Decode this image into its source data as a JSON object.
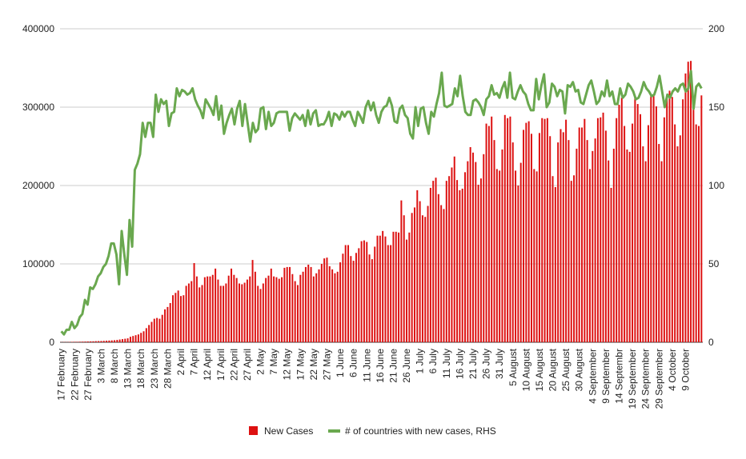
{
  "chart_data": {
    "type": "bar",
    "title": "",
    "x_ticks": [
      "17 February",
      "22 February",
      "27 February",
      "3 March",
      "8 March",
      "13 March",
      "18 March",
      "23 March",
      "28 March",
      "2 April",
      "7 April",
      "12 April",
      "17 April",
      "22 April",
      "27 April",
      "2 May",
      "7 May",
      "12 May",
      "17 May",
      "22 May",
      "27 May",
      "1 June",
      "6 June",
      "11 June",
      "16 June",
      "21 June",
      "26 June",
      "1 July",
      "6 July",
      "11 July",
      "16 July",
      "21 July",
      "26 July",
      "31 July",
      "5 August",
      "10 August",
      "15 August",
      "20 August",
      "25 August",
      "30 August",
      "4 September",
      "9 September",
      "14 Septembr",
      "19 September",
      "24 September",
      "29 September",
      "4 October",
      "9 October"
    ],
    "y_left_ticks": [
      "0",
      "100000",
      "200000",
      "300000",
      "400000"
    ],
    "y_right_ticks": [
      "0",
      "50",
      "100",
      "150",
      "200"
    ],
    "ylim_left": [
      0,
      400000
    ],
    "ylim_right": [
      0,
      200
    ],
    "series": [
      {
        "name": "New Cases",
        "type": "bar",
        "axis": "left",
        "color": "#dd1111",
        "values": [
          200,
          300,
          300,
          400,
          500,
          600,
          600,
          700,
          800,
          900,
          1000,
          1100,
          1200,
          1400,
          1500,
          1600,
          1800,
          2000,
          2200,
          2400,
          2600,
          3000,
          3500,
          4000,
          4500,
          5000,
          7000,
          8000,
          9000,
          10000,
          12000,
          14000,
          18000,
          22000,
          26000,
          30000,
          31000,
          30000,
          35000,
          42000,
          45000,
          50000,
          60000,
          63000,
          66000,
          59000,
          60000,
          72000,
          75000,
          78000,
          101000,
          84000,
          70000,
          73000,
          83000,
          84000,
          84000,
          86000,
          94000,
          80000,
          72000,
          72000,
          75000,
          85000,
          94000,
          86000,
          82000,
          75000,
          74000,
          76000,
          80000,
          84000,
          105000,
          90000,
          72000,
          68000,
          75000,
          82000,
          85000,
          94000,
          84000,
          83000,
          81000,
          83000,
          95000,
          96000,
          96000,
          87000,
          78000,
          73000,
          86000,
          90000,
          96000,
          99000,
          96000,
          84000,
          88000,
          93000,
          100000,
          107000,
          108000,
          97000,
          93000,
          88000,
          90000,
          102000,
          113000,
          124000,
          124000,
          110000,
          104000,
          114000,
          120000,
          129000,
          130000,
          128000,
          112000,
          106000,
          122000,
          136000,
          136000,
          142000,
          135000,
          124000,
          124000,
          141000,
          141000,
          140000,
          181000,
          162000,
          131000,
          140000,
          165000,
          172000,
          194000,
          180000,
          162000,
          160000,
          174000,
          197000,
          206000,
          210000,
          189000,
          175000,
          170000,
          206000,
          212000,
          223000,
          237000,
          207000,
          194000,
          196000,
          217000,
          231000,
          249000,
          242000,
          230000,
          201000,
          209000,
          240000,
          279000,
          276000,
          288000,
          258000,
          221000,
          219000,
          246000,
          290000,
          286000,
          288000,
          255000,
          219000,
          200000,
          229000,
          271000,
          280000,
          282000,
          266000,
          221000,
          218000,
          267000,
          286000,
          285000,
          286000,
          263000,
          212000,
          198000,
          255000,
          272000,
          268000,
          284000,
          258000,
          206000,
          213000,
          247000,
          274000,
          274000,
          285000,
          258000,
          221000,
          244000,
          260000,
          286000,
          287000,
          293000,
          270000,
          232000,
          197000,
          247000,
          286000,
          303000,
          312000,
          276000,
          246000,
          243000,
          279000,
          314000,
          304000,
          291000,
          250000,
          231000,
          277000,
          314000,
          315000,
          301000,
          253000,
          231000,
          287000,
          312000,
          321000,
          313000,
          278000,
          250000,
          264000,
          310000,
          343000,
          358000,
          359000,
          307000,
          278000,
          276000,
          315000
        ]
      },
      {
        "name": "# of countries with new cases, RHS",
        "type": "line",
        "axis": "right",
        "color": "#6aa84f",
        "values": [
          7,
          5,
          8,
          8,
          13,
          9,
          11,
          16,
          18,
          27,
          24,
          35,
          34,
          37,
          42,
          44,
          48,
          50,
          55,
          63,
          63,
          56,
          37,
          71,
          56,
          43,
          78,
          61,
          110,
          114,
          120,
          140,
          131,
          140,
          140,
          131,
          158,
          147,
          155,
          152,
          154,
          138,
          146,
          147,
          162,
          157,
          161,
          160,
          158,
          159,
          162,
          155,
          151,
          148,
          143,
          155,
          152,
          149,
          145,
          157,
          142,
          151,
          133,
          140,
          145,
          149,
          139,
          149,
          154,
          138,
          152,
          140,
          128,
          140,
          134,
          136,
          149,
          150,
          136,
          147,
          138,
          140,
          146,
          147,
          147,
          147,
          147,
          135,
          143,
          146,
          144,
          142,
          145,
          138,
          148,
          139,
          146,
          148,
          138,
          139,
          139,
          142,
          147,
          138,
          146,
          145,
          142,
          147,
          144,
          147,
          147,
          142,
          138,
          147,
          144,
          140,
          150,
          154,
          148,
          153,
          145,
          140,
          147,
          150,
          151,
          156,
          151,
          141,
          140,
          149,
          151,
          145,
          143,
          133,
          130,
          150,
          138,
          149,
          150,
          140,
          133,
          147,
          144,
          152,
          159,
          172,
          151,
          150,
          151,
          152,
          162,
          157,
          170,
          157,
          147,
          145,
          145,
          154,
          155,
          153,
          150,
          145,
          155,
          157,
          164,
          158,
          159,
          156,
          162,
          166,
          156,
          172,
          156,
          155,
          160,
          164,
          160,
          158,
          152,
          148,
          148,
          168,
          155,
          164,
          171,
          150,
          153,
          165,
          163,
          157,
          161,
          160,
          146,
          164,
          163,
          166,
          160,
          161,
          153,
          152,
          158,
          164,
          167,
          160,
          152,
          154,
          160,
          157,
          167,
          157,
          160,
          152,
          152,
          162,
          156,
          158,
          165,
          163,
          160,
          155,
          156,
          160,
          166,
          162,
          160,
          157,
          158,
          163,
          170,
          160,
          150,
          158,
          156,
          160,
          162,
          160,
          164,
          165,
          160,
          162,
          173,
          149,
          163,
          165,
          162
        ]
      }
    ],
    "legend": {
      "position": "bottom",
      "items": [
        "New Cases",
        "# of countries with new cases, RHS"
      ]
    },
    "grid": true
  }
}
